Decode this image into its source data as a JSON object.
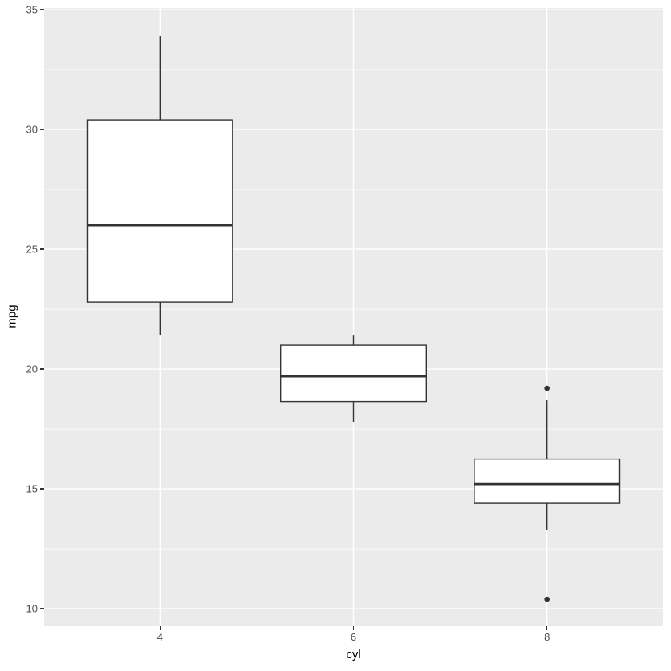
{
  "figure": {
    "colors": {
      "panel_background": "#EBEBEB",
      "grid_major": "#FFFFFF",
      "grid_minor": "#FFFFFF",
      "box_stroke": "#333333",
      "box_fill": "#FFFFFF",
      "outlier_fill": "#333333",
      "axis_text": "#4D4D4D",
      "axis_tick": "#333333",
      "axis_title": "#000000",
      "plot_background": "#FFFFFF"
    }
  },
  "chart_data": {
    "type": "boxplot",
    "title": "",
    "xlabel": "cyl",
    "ylabel": "mpg",
    "categories": [
      "4",
      "6",
      "8"
    ],
    "ylim": [
      9.27,
      35.07
    ],
    "yticks": [
      10,
      15,
      20,
      25,
      30,
      35
    ],
    "yticks_minor": [
      12.5,
      17.5,
      22.5,
      27.5,
      32.5
    ],
    "grid": true,
    "legend": false,
    "boxes": [
      {
        "category": "4",
        "whisker_low": 21.4,
        "q1": 22.8,
        "median": 26.0,
        "q3": 30.4,
        "whisker_high": 33.9,
        "outliers": []
      },
      {
        "category": "6",
        "whisker_low": 17.8,
        "q1": 18.65,
        "median": 19.7,
        "q3": 21.0,
        "whisker_high": 21.4,
        "outliers": []
      },
      {
        "category": "8",
        "whisker_low": 13.3,
        "q1": 14.4,
        "median": 15.2,
        "q3": 16.25,
        "whisker_high": 18.7,
        "outliers": [
          19.2,
          10.4
        ]
      }
    ]
  }
}
